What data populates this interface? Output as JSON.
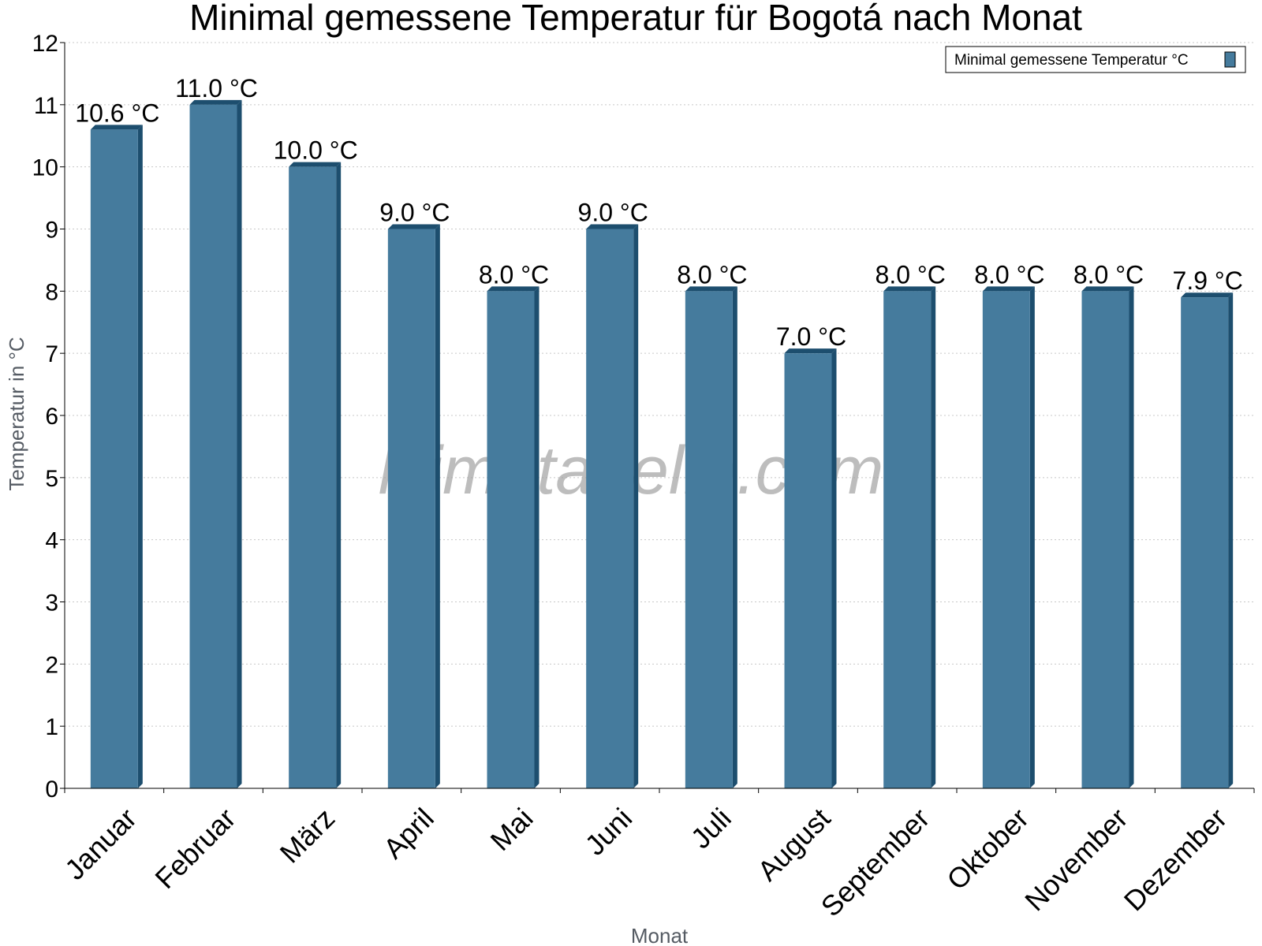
{
  "chart_data": {
    "type": "bar",
    "title": "Minimal gemessene Temperatur für Bogotá nach Monat",
    "xlabel": "Monat",
    "ylabel": "Temperatur in °C",
    "ylim": [
      0,
      12
    ],
    "yticks": [
      0,
      1,
      2,
      3,
      4,
      5,
      6,
      7,
      8,
      9,
      10,
      11,
      12
    ],
    "grid": true,
    "legend_position": "top-right",
    "categories": [
      "Januar",
      "Februar",
      "März",
      "April",
      "Mai",
      "Juni",
      "Juli",
      "August",
      "September",
      "Oktober",
      "November",
      "Dezember"
    ],
    "series": [
      {
        "name": "Minimal gemessene Temperatur °C",
        "values": [
          10.6,
          11.0,
          10.0,
          9.0,
          8.0,
          9.0,
          8.0,
          7.0,
          8.0,
          8.0,
          8.0,
          7.9
        ],
        "labels": [
          "10.6 °C",
          "11.0 °C",
          "10.0 °C",
          "9.0 °C",
          "8.0 °C",
          "9.0 °C",
          "8.0 °C",
          "7.0 °C",
          "8.0 °C",
          "8.0 °C",
          "8.0 °C",
          "7.9 °C"
        ],
        "color": "#457b9d",
        "edge_color": "#1d4e6e"
      }
    ],
    "watermark": "klimatabelle.com"
  }
}
